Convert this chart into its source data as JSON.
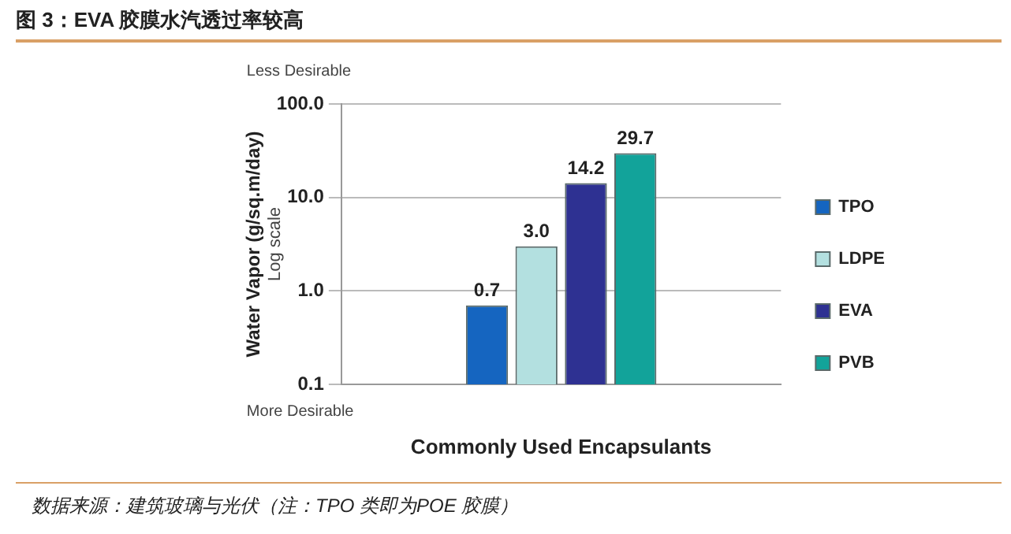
{
  "chart_data": {
    "type": "bar",
    "title": "图 3：EVA 胶膜水汽透过率较高",
    "xlabel": "Commonly Used Encapsulants",
    "ylabel": "Water Vapor (g/sq.m/day)",
    "categories": [
      null
    ],
    "series": [
      {
        "name": "TPO",
        "color": "#1565c0",
        "values": [
          0.7
        ],
        "value_labels": [
          "0.7"
        ]
      },
      {
        "name": "LDPE",
        "color": "#b3e0e0",
        "values": [
          3.0
        ],
        "value_labels": [
          "3.0"
        ]
      },
      {
        "name": "EVA",
        "color": "#2e3192",
        "values": [
          14.2
        ],
        "value_labels": [
          "14.2"
        ]
      },
      {
        "name": "PVB",
        "color": "#12a39a",
        "values": [
          29.7
        ],
        "value_labels": [
          "29.7"
        ]
      }
    ],
    "log": true,
    "ylim": [
      0.1,
      100
    ],
    "yticks": [
      {
        "value": 0.1,
        "label": "0.1"
      },
      {
        "value": 1,
        "label": "1.0"
      },
      {
        "value": 10,
        "label": "10.0"
      },
      {
        "value": 100,
        "label": "100.0"
      }
    ],
    "grid": "y",
    "legend": "right",
    "annotations": [
      "Less Desirable",
      "More Desirable",
      "Log scale",
      "数据来源：建筑玻璃与光伏（注：TPO 类即为POE 胶膜）"
    ]
  }
}
